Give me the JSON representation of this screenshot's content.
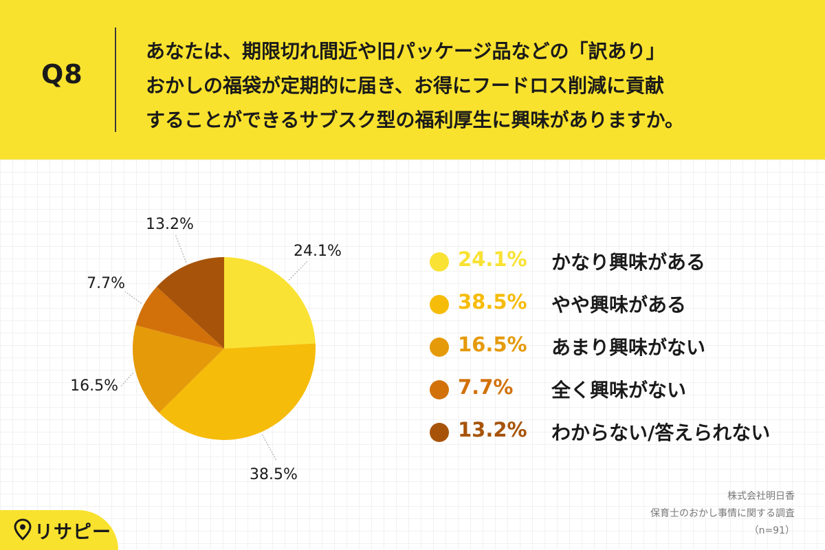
{
  "header": {
    "question_number": "Q8",
    "question_lines": [
      "あなたは、期限切れ間近や旧パッケージ品などの「訳あり」",
      "おかしの福袋が定期的に届き、お得にフードロス削減に貢献",
      "することができるサブスク型の福利厚生に興味がありますか。"
    ]
  },
  "chart_data": {
    "type": "pie",
    "slices": [
      {
        "label": "かなり興味がある",
        "value": 24.1,
        "display": "24.1%",
        "color": "#F9E233"
      },
      {
        "label": "やや興味がある",
        "value": 38.5,
        "display": "38.5%",
        "color": "#F6BC0A"
      },
      {
        "label": "あまり興味がない",
        "value": 16.5,
        "display": "16.5%",
        "color": "#E59A0A"
      },
      {
        "label": "全く興味がない",
        "value": 7.7,
        "display": "7.7%",
        "color": "#D2710A"
      },
      {
        "label": "わからない/答えられない",
        "value": 13.2,
        "display": "13.2%",
        "color": "#A7540A"
      }
    ],
    "start_angle": "12 o'clock",
    "direction": "clockwise"
  },
  "legend_colors": [
    "#F9E233",
    "#F6BC0A",
    "#E59A0A",
    "#D2710A",
    "#A7540A"
  ],
  "legend_text_colors": [
    "#F9E233",
    "#F6BC0A",
    "#E59A0A",
    "#D2710A",
    "#A7540A"
  ],
  "source": {
    "company": "株式会社明日香",
    "survey": "保育士のおかし事情に関する調査",
    "n": "（n=91）"
  },
  "logo": {
    "text": "リサピー",
    "icon": "map-pin-icon"
  }
}
